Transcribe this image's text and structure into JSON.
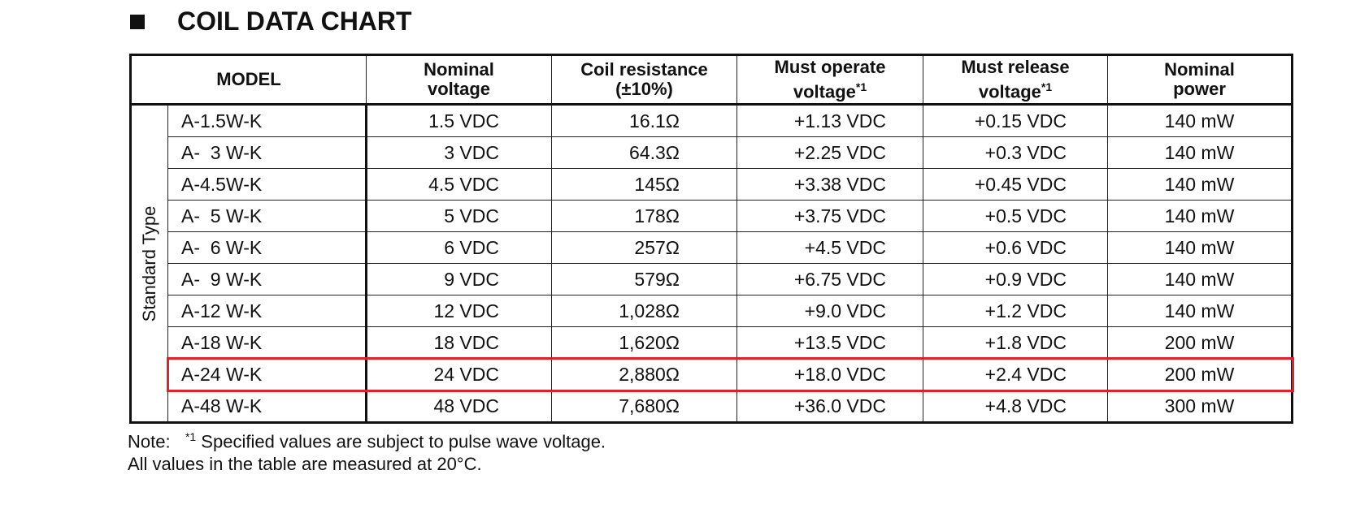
{
  "title": "COIL DATA CHART",
  "table": {
    "headers": [
      {
        "lines": [
          "MODEL"
        ]
      },
      {
        "lines": [
          "Nominal",
          "voltage"
        ]
      },
      {
        "lines": [
          "Coil resistance",
          "(±10%)"
        ]
      },
      {
        "lines": [
          "Must operate",
          "voltage"
        ],
        "sup": "*1"
      },
      {
        "lines": [
          "Must release",
          "voltage"
        ],
        "sup": "*1"
      },
      {
        "lines": [
          "Nominal",
          "power"
        ]
      }
    ],
    "group": "Standard Type",
    "highlight_row": 8,
    "rows": [
      [
        "A-1.5W-K",
        "1.5 VDC",
        "16.1Ω",
        "+1.13 VDC",
        "+0.15 VDC",
        "140 mW"
      ],
      [
        "A-  3 W-K",
        "3 VDC",
        "64.3Ω",
        "+2.25 VDC",
        "+0.3 VDC",
        "140 mW"
      ],
      [
        "A-4.5W-K",
        "4.5 VDC",
        "145Ω",
        "+3.38 VDC",
        "+0.45 VDC",
        "140 mW"
      ],
      [
        "A-  5 W-K",
        "5 VDC",
        "178Ω",
        "+3.75 VDC",
        "+0.5 VDC",
        "140 mW"
      ],
      [
        "A-  6 W-K",
        "6 VDC",
        "257Ω",
        "+4.5 VDC",
        "+0.6 VDC",
        "140 mW"
      ],
      [
        "A-  9 W-K",
        "9 VDC",
        "579Ω",
        "+6.75 VDC",
        "+0.9 VDC",
        "140 mW"
      ],
      [
        "A-12 W-K",
        "12 VDC",
        "1,028Ω",
        "+9.0 VDC",
        "+1.2 VDC",
        "140 mW"
      ],
      [
        "A-18 W-K",
        "18 VDC",
        "1,620Ω",
        "+13.5 VDC",
        "+1.8 VDC",
        "200 mW"
      ],
      [
        "A-24 W-K",
        "24 VDC",
        "2,880Ω",
        "+18.0 VDC",
        "+2.4 VDC",
        "200 mW"
      ],
      [
        "A-48 W-K",
        "48 VDC",
        "7,680Ω",
        "+36.0 VDC",
        "+4.8 VDC",
        "300 mW"
      ]
    ]
  },
  "note": {
    "label": "Note:",
    "sup": "*1",
    "text": "Specified values are subject to pulse wave voltage.",
    "line2": "All values in the table are measured at 20°C."
  }
}
